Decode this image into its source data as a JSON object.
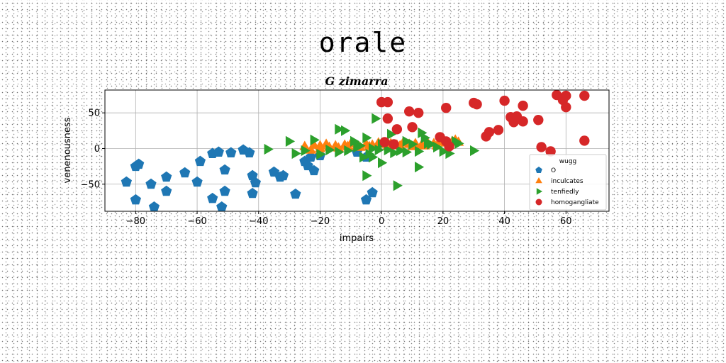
{
  "suptitle": "orale",
  "chart_data": {
    "type": "scatter",
    "title": "G zimarra",
    "xlabel": "impairs",
    "ylabel": "venenousness",
    "xlim": [
      -90,
      74
    ],
    "ylim": [
      -88,
      82
    ],
    "xticks": [
      -80,
      -60,
      -40,
      -20,
      0,
      20,
      40,
      60
    ],
    "yticks": [
      -50,
      0,
      50
    ],
    "grid": true,
    "legend": {
      "title": "wugg",
      "placement": "lower-right"
    },
    "series": [
      {
        "name": "O",
        "marker": "pentagon",
        "color": "#1f77b4",
        "points": [
          [
            -83,
            -47
          ],
          [
            -80,
            -25
          ],
          [
            -79,
            -22
          ],
          [
            -80,
            -72
          ],
          [
            -75,
            -50
          ],
          [
            -74,
            -82
          ],
          [
            -70,
            -40
          ],
          [
            -70,
            -60
          ],
          [
            -64,
            -34
          ],
          [
            -60,
            -47
          ],
          [
            -59,
            -18
          ],
          [
            -55,
            -7
          ],
          [
            -55,
            -70
          ],
          [
            -53,
            -5
          ],
          [
            -52,
            -82
          ],
          [
            -51,
            -60
          ],
          [
            -51,
            -30
          ],
          [
            -49,
            -6
          ],
          [
            -45,
            -2
          ],
          [
            -43,
            -6
          ],
          [
            -42,
            -63
          ],
          [
            -42,
            -38
          ],
          [
            -41,
            -48
          ],
          [
            -35,
            -33
          ],
          [
            -33,
            -40
          ],
          [
            -32,
            -38
          ],
          [
            -28,
            -64
          ],
          [
            -25,
            -18
          ],
          [
            -24,
            -24
          ],
          [
            -23,
            -12
          ],
          [
            -22,
            -31
          ],
          [
            -20,
            -10
          ],
          [
            -5,
            -72
          ],
          [
            -3,
            -62
          ],
          [
            -5,
            -12
          ],
          [
            -8,
            -5
          ]
        ]
      },
      {
        "name": "inculcates",
        "marker": "triangle-up",
        "color": "#ff7f0e",
        "points": [
          [
            -25,
            3
          ],
          [
            -22,
            5
          ],
          [
            -20,
            4
          ],
          [
            -18,
            6
          ],
          [
            -15,
            4
          ],
          [
            -12,
            5
          ],
          [
            -10,
            7
          ],
          [
            -8,
            4
          ],
          [
            -5,
            6
          ],
          [
            -3,
            5
          ],
          [
            -1,
            8
          ],
          [
            1,
            6
          ],
          [
            3,
            7
          ],
          [
            5,
            5
          ],
          [
            7,
            8
          ],
          [
            9,
            6
          ],
          [
            11,
            7
          ],
          [
            13,
            5
          ],
          [
            15,
            8
          ],
          [
            17,
            7
          ],
          [
            19,
            9
          ],
          [
            21,
            8
          ],
          [
            23,
            10
          ],
          [
            24,
            12
          ],
          [
            25,
            9
          ],
          [
            -23,
            -2
          ],
          [
            -20,
            0
          ],
          [
            -17,
            2
          ],
          [
            -14,
            1
          ],
          [
            -11,
            3
          ],
          [
            -7,
            2
          ],
          [
            -4,
            3
          ],
          [
            2,
            3
          ],
          [
            6,
            4
          ],
          [
            10,
            3
          ],
          [
            14,
            4
          ],
          [
            18,
            4
          ],
          [
            22,
            5
          ]
        ]
      },
      {
        "name": "tenfiedly",
        "marker": "triangle-right",
        "color": "#2ca02c",
        "points": [
          [
            -37,
            -1
          ],
          [
            -30,
            10
          ],
          [
            -28,
            -7
          ],
          [
            -25,
            -3
          ],
          [
            -22,
            12
          ],
          [
            -20,
            -8
          ],
          [
            -17,
            -2
          ],
          [
            -14,
            -5
          ],
          [
            -14,
            27
          ],
          [
            -12,
            25
          ],
          [
            -11,
            -3
          ],
          [
            -9,
            10
          ],
          [
            -8,
            2
          ],
          [
            -7,
            4
          ],
          [
            -6,
            -12
          ],
          [
            -5,
            -38
          ],
          [
            -5,
            15
          ],
          [
            -4,
            -8
          ],
          [
            -3,
            -12
          ],
          [
            -3,
            0
          ],
          [
            -2,
            42
          ],
          [
            -1,
            -2
          ],
          [
            0,
            -20
          ],
          [
            0,
            6
          ],
          [
            2,
            -2
          ],
          [
            3,
            20
          ],
          [
            4,
            -6
          ],
          [
            5,
            -52
          ],
          [
            6,
            -3
          ],
          [
            8,
            10
          ],
          [
            8,
            -5
          ],
          [
            10,
            6
          ],
          [
            12,
            -4
          ],
          [
            12,
            -26
          ],
          [
            13,
            22
          ],
          [
            14,
            15
          ],
          [
            15,
            7
          ],
          [
            16,
            6
          ],
          [
            18,
            2
          ],
          [
            20,
            -4
          ],
          [
            22,
            -7
          ],
          [
            24,
            10
          ],
          [
            25,
            7
          ],
          [
            30,
            -3
          ]
        ]
      },
      {
        "name": "homogangliate",
        "marker": "circle",
        "color": "#d62728",
        "points": [
          [
            0,
            65
          ],
          [
            1,
            9
          ],
          [
            2,
            65
          ],
          [
            2,
            42
          ],
          [
            4,
            6
          ],
          [
            5,
            27
          ],
          [
            9,
            52
          ],
          [
            10,
            30
          ],
          [
            12,
            50
          ],
          [
            19,
            16
          ],
          [
            21,
            57
          ],
          [
            21,
            10
          ],
          [
            22,
            3
          ],
          [
            30,
            64
          ],
          [
            31,
            62
          ],
          [
            34,
            17
          ],
          [
            35,
            23
          ],
          [
            38,
            26
          ],
          [
            40,
            67
          ],
          [
            42,
            44
          ],
          [
            43,
            37
          ],
          [
            44,
            45
          ],
          [
            46,
            60
          ],
          [
            46,
            38
          ],
          [
            51,
            40
          ],
          [
            52,
            2
          ],
          [
            55,
            -4
          ],
          [
            57,
            75
          ],
          [
            59,
            68
          ],
          [
            60,
            58
          ],
          [
            60,
            74
          ],
          [
            66,
            74
          ],
          [
            66,
            11
          ]
        ]
      }
    ]
  }
}
